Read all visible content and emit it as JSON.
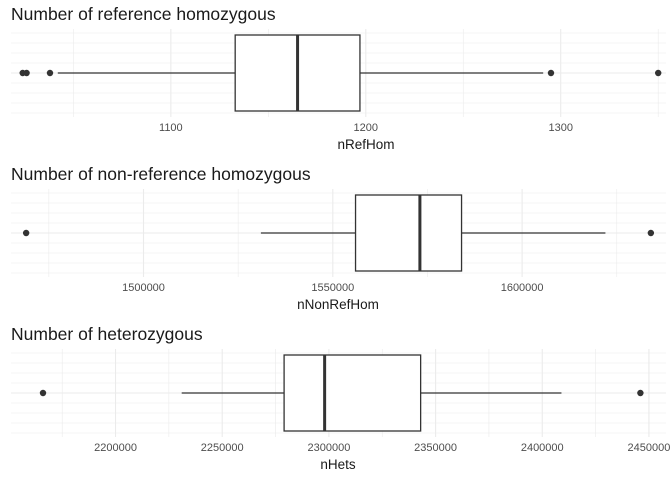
{
  "chart_data": [
    {
      "type": "box",
      "title": "Number of reference homozygous",
      "xlabel": "nRefHom",
      "xlim": [
        1018,
        1354
      ],
      "ticks": [
        1100,
        1200,
        1300
      ],
      "tick_labels": [
        "1100",
        "1200",
        "1300"
      ],
      "box": {
        "whisker_low": 1042,
        "q1": 1133,
        "median": 1165,
        "q3": 1197,
        "whisker_high": 1291
      },
      "outliers": [
        1024,
        1026,
        1038,
        1295,
        1350
      ],
      "colors": {
        "box_fill": "#ffffff",
        "line": "#333333",
        "grid": "#ebebeb"
      }
    },
    {
      "type": "box",
      "title": "Number of non-reference homozygous",
      "xlabel": "nNonRefHom",
      "xlim": [
        1465000,
        1638000
      ],
      "ticks": [
        1500000,
        1550000,
        1600000
      ],
      "tick_labels": [
        "1500000",
        "1550000",
        "1600000"
      ],
      "box": {
        "whisker_low": 1531000,
        "q1": 1556000,
        "median": 1573000,
        "q3": 1584000,
        "whisker_high": 1622000
      },
      "outliers": [
        1469000,
        1634000
      ],
      "colors": {
        "box_fill": "#ffffff",
        "line": "#333333",
        "grid": "#ebebeb"
      }
    },
    {
      "type": "box",
      "title": "Number of heterozygous",
      "xlabel": "nHets",
      "xlim": [
        2151000,
        2458000
      ],
      "ticks": [
        2200000,
        2250000,
        2300000,
        2350000,
        2400000,
        2450000
      ],
      "tick_labels": [
        "2200000",
        "2250000",
        "2300000",
        "2350000",
        "2400000",
        "2450000"
      ],
      "box": {
        "whisker_low": 2231000,
        "q1": 2279000,
        "median": 2298000,
        "q3": 2343000,
        "whisker_high": 2409000
      },
      "outliers": [
        2166000,
        2446000
      ],
      "colors": {
        "box_fill": "#ffffff",
        "line": "#333333",
        "grid": "#ebebeb"
      }
    }
  ]
}
